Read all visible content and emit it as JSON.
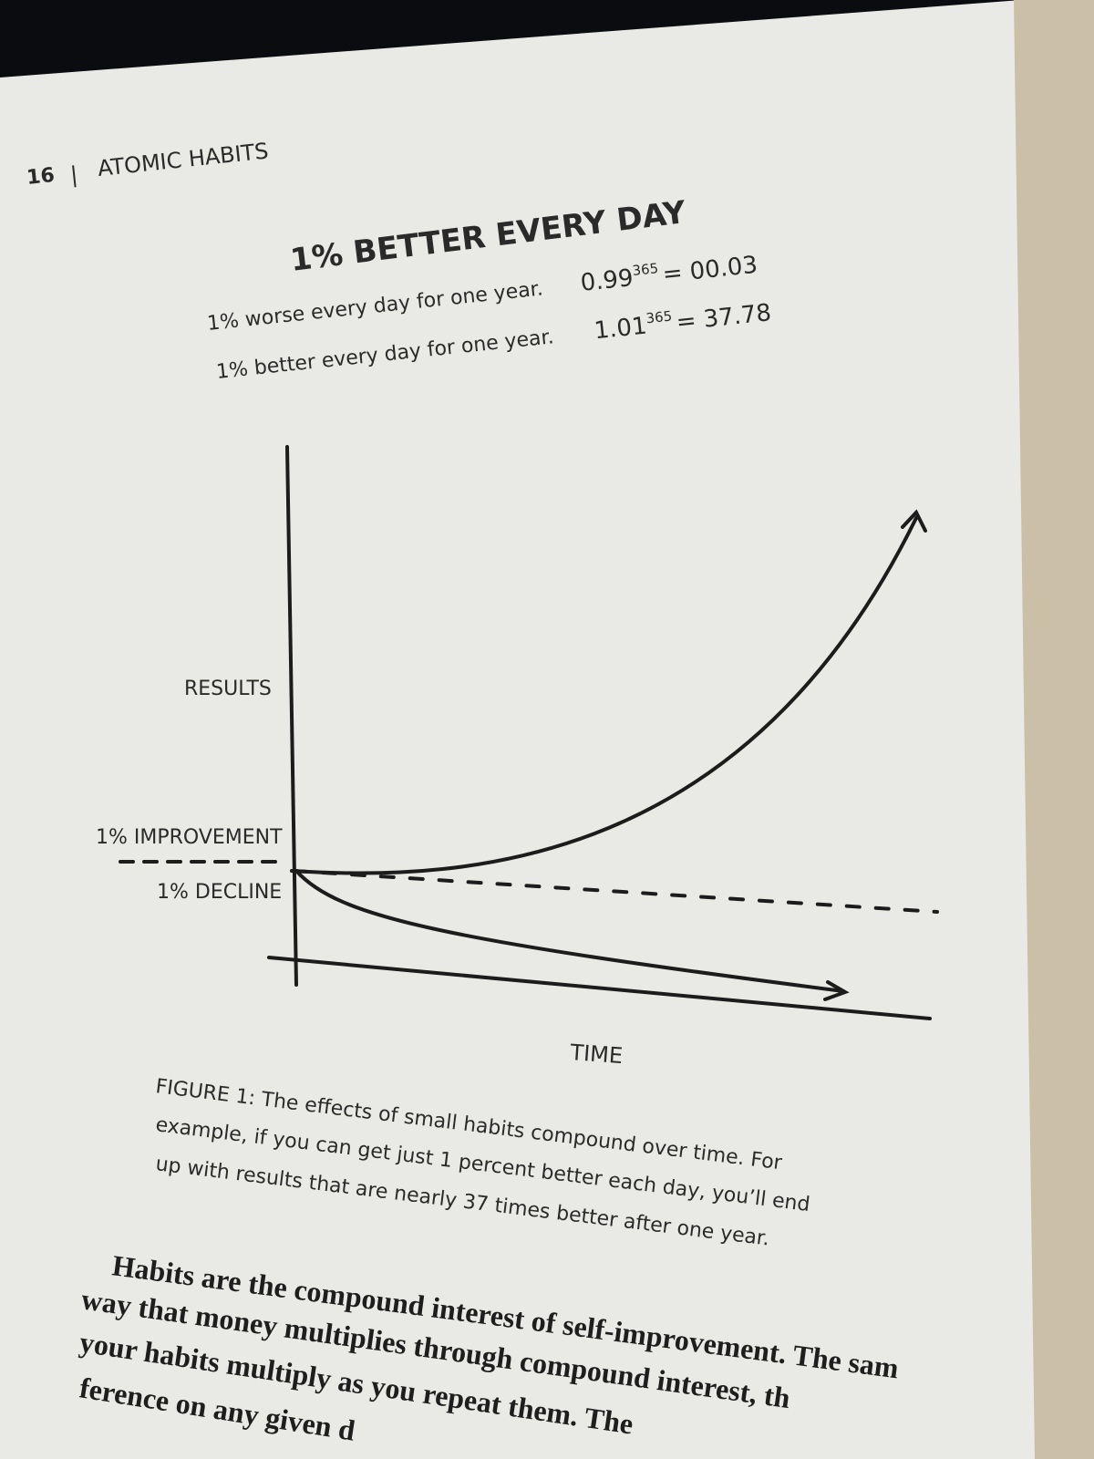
{
  "header": {
    "page_number": "16",
    "book_title": "ATOMIC HABITS"
  },
  "figure": {
    "title": "1% BETTER EVERY DAY",
    "equations": [
      {
        "text": "1% worse every day for one year.",
        "base": "0.99",
        "exponent": "365",
        "result": "= 00.03"
      },
      {
        "text": "1% better every day for one year.",
        "base": "1.01",
        "exponent": "365",
        "result": "= 37.78"
      }
    ],
    "y_axis_label": "RESULTS",
    "improvement_label": "1% IMPROVEMENT",
    "decline_label": "1% DECLINE",
    "x_axis_label": "TIME",
    "caption": [
      "FIGURE 1: The effects of small habits compound over time. For",
      "example, if you can get just 1 percent better each day, you’ll end",
      "up with results that are nearly 37 times better after one year."
    ]
  },
  "body": [
    "Habits are the compound interest of self-improvement. The sam",
    "way that money multiplies through compound interest, th",
    "your habits multiply as you repeat them. The",
    "ference on any given d"
  ]
}
